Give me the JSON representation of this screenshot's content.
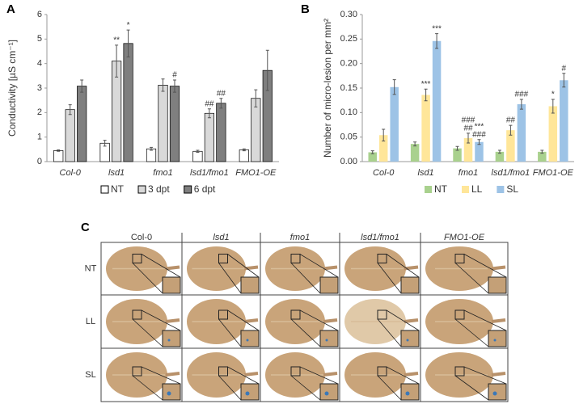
{
  "chart_data": [
    {
      "type": "bar",
      "label": "A",
      "y_label": "Conductivity [µS cm⁻¹]",
      "categories": [
        "Col-0",
        "lsd1",
        "fmo1",
        "lsd1/fmo1",
        "FMO1-OE"
      ],
      "ylim": [
        0,
        6
      ],
      "yticks": [
        0,
        1,
        2,
        3,
        4,
        5,
        6
      ],
      "edgecolor": "#000000",
      "series": [
        {
          "name": "NT",
          "color": "#ffffff",
          "mark_color": "#000000",
          "values": [
            0.45,
            0.75,
            0.52,
            0.42,
            0.48
          ],
          "errors": [
            0.03,
            0.12,
            0.06,
            0.04,
            0.04
          ],
          "marks": [
            null,
            null,
            null,
            null,
            null
          ]
        },
        {
          "name": "3 dpt",
          "color": "#d9d9d9",
          "mark_color": "#a6a6a6",
          "values": [
            2.12,
            4.1,
            3.12,
            1.97,
            2.58
          ],
          "errors": [
            0.2,
            0.65,
            0.25,
            0.18,
            0.35
          ],
          "marks": [
            null,
            [
              "**"
            ],
            null,
            [
              "##"
            ],
            null
          ]
        },
        {
          "name": "6 dpt",
          "color": "#7f7f7f",
          "mark_color": "#000000",
          "values": [
            3.08,
            4.82,
            3.08,
            2.38,
            3.72
          ],
          "errors": [
            0.25,
            0.55,
            0.25,
            0.2,
            0.82
          ],
          "marks": [
            null,
            [
              "*"
            ],
            [
              "#"
            ],
            [
              "##"
            ],
            null
          ]
        }
      ]
    },
    {
      "type": "bar",
      "label": "B",
      "y_label": "Number of micro-lesion per mm²",
      "categories": [
        "Col-0",
        "lsd1",
        "fmo1",
        "lsd1/fmo1",
        "FMO1-OE"
      ],
      "ylim": [
        0,
        0.3
      ],
      "yticks": [
        {
          "value": 0,
          "label": "0.00"
        },
        {
          "value": 0.05,
          "label": "0.05"
        },
        {
          "value": 0.1,
          "label": "0.10"
        },
        {
          "value": 0.15,
          "label": "0.15"
        },
        {
          "value": 0.2,
          "label": "0.20"
        },
        {
          "value": 0.25,
          "label": "0.25"
        },
        {
          "value": 0.3,
          "label": "0.30"
        }
      ],
      "series": [
        {
          "name": "NT",
          "color": "#a9d18e",
          "mark_color": "#a9d18e",
          "values": [
            0.019,
            0.036,
            0.027,
            0.02,
            0.02
          ],
          "errors": [
            0.003,
            0.004,
            0.004,
            0.003,
            0.003
          ],
          "marks": [
            null,
            null,
            null,
            null,
            null
          ]
        },
        {
          "name": "LL",
          "color": "#ffe699",
          "mark_color": "#ffc000",
          "values": [
            0.054,
            0.136,
            0.048,
            0.064,
            0.113
          ],
          "errors": [
            0.012,
            0.012,
            0.01,
            0.01,
            0.014
          ],
          "marks": [
            null,
            [
              "***"
            ],
            [
              "##",
              "###"
            ],
            [
              "##"
            ],
            [
              "*"
            ]
          ]
        },
        {
          "name": "SL",
          "color": "#9dc3e6",
          "mark_color": "#5b9bd5",
          "values": [
            0.152,
            0.246,
            0.04,
            0.117,
            0.166
          ],
          "errors": [
            0.015,
            0.015,
            0.005,
            0.01,
            0.014
          ],
          "marks": [
            null,
            [
              "***"
            ],
            [
              "###",
              "***"
            ],
            [
              "###"
            ],
            [
              "#"
            ]
          ]
        }
      ]
    }
  ],
  "panel_c": {
    "label": "C",
    "columns": [
      "Col-0",
      "lsd1",
      "fmo1",
      "lsd1/fmo1",
      "FMO1-OE"
    ],
    "rows": [
      "NT",
      "LL",
      "SL"
    ]
  }
}
